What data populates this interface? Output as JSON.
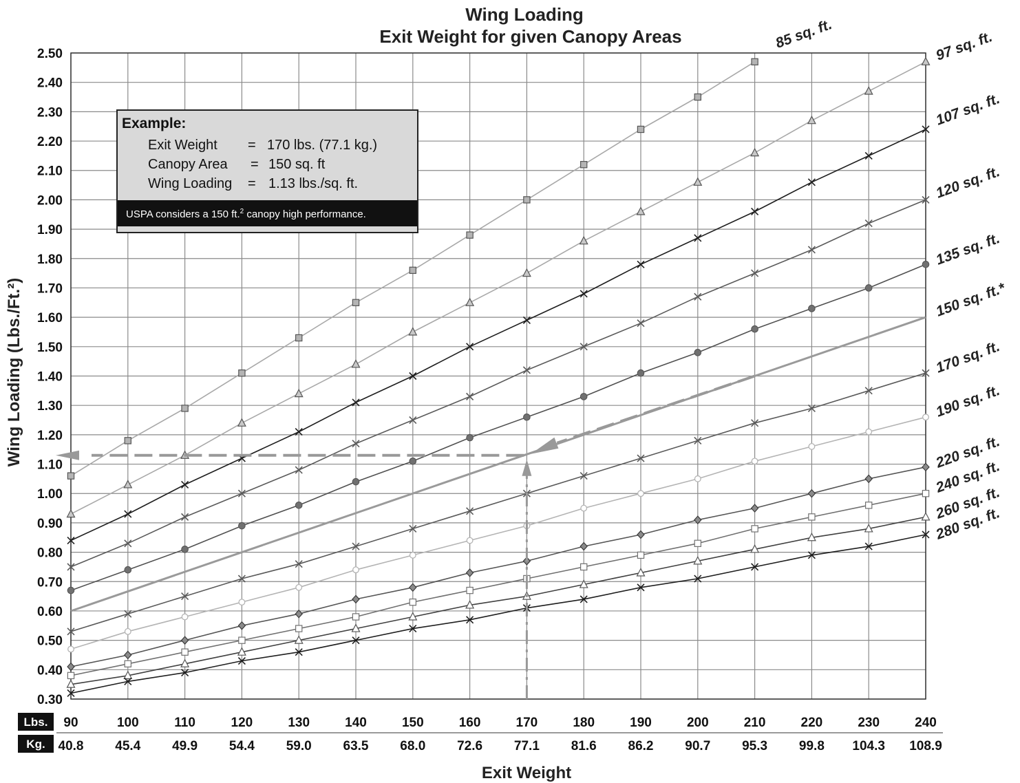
{
  "chart_data": {
    "type": "line",
    "title": "Wing Loading",
    "subtitle": "Exit Weight for given Canopy Areas",
    "xlabel": "Exit Weight",
    "ylabel": "Wing Loading (Lbs./Ft.²)",
    "x_unit_label": "Lbs.",
    "x2_unit_label": "Kg.",
    "x": [
      90,
      100,
      110,
      120,
      130,
      140,
      150,
      160,
      170,
      180,
      190,
      200,
      210,
      220,
      230,
      240
    ],
    "x_ticks_lbs": [
      "90",
      "100",
      "110",
      "120",
      "130",
      "140",
      "150",
      "160",
      "170",
      "180",
      "190",
      "200",
      "210",
      "220",
      "230",
      "240"
    ],
    "x_ticks_kg": [
      "40.8",
      "45.4",
      "49.9",
      "54.4",
      "59.0",
      "63.5",
      "68.0",
      "72.6",
      "77.1",
      "81.6",
      "86.2",
      "90.7",
      "95.3",
      "99.8",
      "104.3",
      "108.9"
    ],
    "xlim": [
      90,
      240
    ],
    "ylim": [
      0.3,
      2.5
    ],
    "y_ticks": [
      "0.30",
      "0.40",
      "0.50",
      "0.60",
      "0.70",
      "0.80",
      "0.90",
      "1.00",
      "1.10",
      "1.20",
      "1.30",
      "1.40",
      "1.50",
      "1.60",
      "1.70",
      "1.80",
      "1.90",
      "2.00",
      "2.10",
      "2.20",
      "2.30",
      "2.40",
      "2.50"
    ],
    "grid": true,
    "series": [
      {
        "name": "85 sq. ft.",
        "area": 85,
        "marker": "square",
        "color": "#a8a8a8",
        "markerFill": "#b4b4b4",
        "x": [
          90,
          100,
          110,
          120,
          130,
          140,
          150,
          160,
          170,
          180,
          190,
          200,
          210
        ],
        "values": [
          1.06,
          1.18,
          1.29,
          1.41,
          1.53,
          1.65,
          1.76,
          1.88,
          2.0,
          2.12,
          2.24,
          2.35,
          2.47
        ]
      },
      {
        "name": "97 sq. ft.",
        "area": 97,
        "marker": "triangle",
        "color": "#a8a8a8",
        "markerFill": "#c8c8c8",
        "x": [
          90,
          100,
          110,
          120,
          130,
          140,
          150,
          160,
          170,
          180,
          190,
          200,
          210,
          220,
          230,
          240
        ],
        "values": [
          0.93,
          1.03,
          1.13,
          1.24,
          1.34,
          1.44,
          1.55,
          1.65,
          1.75,
          1.86,
          1.96,
          2.06,
          2.16,
          2.27,
          2.37,
          2.47
        ]
      },
      {
        "name": "107 sq. ft.",
        "area": 107,
        "marker": "x",
        "color": "#1e1e1e",
        "markerFill": "none",
        "x": [
          90,
          100,
          110,
          120,
          130,
          140,
          150,
          160,
          170,
          180,
          190,
          200,
          210,
          220,
          230,
          240
        ],
        "values": [
          0.84,
          0.93,
          1.03,
          1.12,
          1.21,
          1.31,
          1.4,
          1.5,
          1.59,
          1.68,
          1.78,
          1.87,
          1.96,
          2.06,
          2.15,
          2.24
        ]
      },
      {
        "name": "120 sq. ft.",
        "area": 120,
        "marker": "x",
        "color": "#5a5a5a",
        "markerFill": "none",
        "x": [
          90,
          100,
          110,
          120,
          130,
          140,
          150,
          160,
          170,
          180,
          190,
          200,
          210,
          220,
          230,
          240
        ],
        "values": [
          0.75,
          0.83,
          0.92,
          1.0,
          1.08,
          1.17,
          1.25,
          1.33,
          1.42,
          1.5,
          1.58,
          1.67,
          1.75,
          1.83,
          1.92,
          2.0
        ]
      },
      {
        "name": "135 sq. ft.",
        "area": 135,
        "marker": "dot",
        "color": "#505050",
        "markerFill": "#707070",
        "x": [
          90,
          100,
          110,
          120,
          130,
          140,
          150,
          160,
          170,
          180,
          190,
          200,
          210,
          220,
          230,
          240
        ],
        "values": [
          0.67,
          0.74,
          0.81,
          0.89,
          0.96,
          1.04,
          1.11,
          1.19,
          1.26,
          1.33,
          1.41,
          1.48,
          1.56,
          1.63,
          1.7,
          1.78
        ]
      },
      {
        "name": "150 sq. ft.*",
        "area": 150,
        "marker": "none",
        "color": "#9a9a9a",
        "markerFill": "none",
        "thick": true,
        "x": [
          90,
          240
        ],
        "values": [
          0.6,
          1.6
        ]
      },
      {
        "name": "170 sq. ft.",
        "area": 170,
        "marker": "x",
        "color": "#5a5a5a",
        "markerFill": "none",
        "x": [
          90,
          100,
          110,
          120,
          130,
          140,
          150,
          160,
          170,
          180,
          190,
          200,
          210,
          220,
          230,
          240
        ],
        "values": [
          0.53,
          0.59,
          0.65,
          0.71,
          0.76,
          0.82,
          0.88,
          0.94,
          1.0,
          1.06,
          1.12,
          1.18,
          1.24,
          1.29,
          1.35,
          1.41
        ]
      },
      {
        "name": "190 sq. ft.",
        "area": 190,
        "marker": "circle",
        "color": "#b4b4b4",
        "markerFill": "#ffffff",
        "x": [
          90,
          100,
          110,
          120,
          130,
          140,
          150,
          160,
          170,
          180,
          190,
          200,
          210,
          220,
          230,
          240
        ],
        "values": [
          0.47,
          0.53,
          0.58,
          0.63,
          0.68,
          0.74,
          0.79,
          0.84,
          0.89,
          0.95,
          1.0,
          1.05,
          1.11,
          1.16,
          1.21,
          1.26
        ]
      },
      {
        "name": "220 sq. ft.",
        "area": 220,
        "marker": "diamond",
        "color": "#555555",
        "markerFill": "#8a8a8a",
        "x": [
          90,
          100,
          110,
          120,
          130,
          140,
          150,
          160,
          170,
          180,
          190,
          200,
          210,
          220,
          230,
          240
        ],
        "values": [
          0.41,
          0.45,
          0.5,
          0.55,
          0.59,
          0.64,
          0.68,
          0.73,
          0.77,
          0.82,
          0.86,
          0.91,
          0.95,
          1.0,
          1.05,
          1.09
        ]
      },
      {
        "name": "240 sq. ft.",
        "area": 240,
        "marker": "square",
        "color": "#707070",
        "markerFill": "#ffffff",
        "x": [
          90,
          100,
          110,
          120,
          130,
          140,
          150,
          160,
          170,
          180,
          190,
          200,
          210,
          220,
          230,
          240
        ],
        "values": [
          0.38,
          0.42,
          0.46,
          0.5,
          0.54,
          0.58,
          0.63,
          0.67,
          0.71,
          0.75,
          0.79,
          0.83,
          0.88,
          0.92,
          0.96,
          1.0
        ]
      },
      {
        "name": "260 sq. ft.",
        "area": 260,
        "marker": "triangle",
        "color": "#404040",
        "markerFill": "#ffffff",
        "x": [
          90,
          100,
          110,
          120,
          130,
          140,
          150,
          160,
          170,
          180,
          190,
          200,
          210,
          220,
          230,
          240
        ],
        "values": [
          0.35,
          0.38,
          0.42,
          0.46,
          0.5,
          0.54,
          0.58,
          0.62,
          0.65,
          0.69,
          0.73,
          0.77,
          0.81,
          0.85,
          0.88,
          0.92
        ]
      },
      {
        "name": "280 sq. ft.",
        "area": 280,
        "marker": "x",
        "color": "#1e1e1e",
        "markerFill": "none",
        "x": [
          90,
          100,
          110,
          120,
          130,
          140,
          150,
          160,
          170,
          180,
          190,
          200,
          210,
          220,
          230,
          240
        ],
        "values": [
          0.32,
          0.36,
          0.39,
          0.43,
          0.46,
          0.5,
          0.54,
          0.57,
          0.61,
          0.64,
          0.68,
          0.71,
          0.75,
          0.79,
          0.82,
          0.86
        ]
      }
    ],
    "example_path": {
      "exit_weight": 170,
      "area": 150,
      "wing_loading": 1.13,
      "from_x": 210,
      "color": "#999999"
    }
  },
  "example_box": {
    "heading": "Example:",
    "rows": [
      {
        "label": "Exit Weight",
        "eq": "=",
        "value": "170 lbs. (77.1 kg.)"
      },
      {
        "label": "Canopy Area",
        "eq": "=",
        "value": "150 sq. ft"
      },
      {
        "label": "Wing Loading",
        "eq": "=",
        "value": "1.13 lbs./sq. ft."
      }
    ],
    "note_prefix": "USPA considers a 150 ft.",
    "note_sup": "2",
    "note_suffix": " canopy high performance."
  },
  "colors": {
    "grid": "#8a8a8a",
    "box_fill": "#d9d9d9",
    "badge": "#111111"
  }
}
